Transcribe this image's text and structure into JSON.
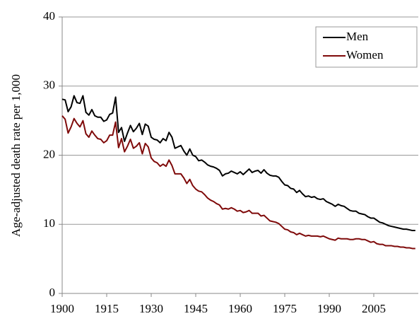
{
  "chart_data": {
    "type": "line",
    "y_label": "Age-adjusted death rate per 1,000",
    "x": [
      1900,
      1901,
      1902,
      1903,
      1904,
      1905,
      1906,
      1907,
      1908,
      1909,
      1910,
      1911,
      1912,
      1913,
      1914,
      1915,
      1916,
      1917,
      1918,
      1919,
      1920,
      1921,
      1922,
      1923,
      1924,
      1925,
      1926,
      1927,
      1928,
      1929,
      1930,
      1931,
      1932,
      1933,
      1934,
      1935,
      1936,
      1937,
      1938,
      1939,
      1940,
      1941,
      1942,
      1943,
      1944,
      1945,
      1946,
      1947,
      1948,
      1949,
      1950,
      1951,
      1952,
      1953,
      1954,
      1955,
      1956,
      1957,
      1958,
      1959,
      1960,
      1961,
      1962,
      1963,
      1964,
      1965,
      1966,
      1967,
      1968,
      1969,
      1970,
      1971,
      1972,
      1973,
      1974,
      1975,
      1976,
      1977,
      1978,
      1979,
      1980,
      1981,
      1982,
      1983,
      1984,
      1985,
      1986,
      1987,
      1988,
      1989,
      1990,
      1991,
      1992,
      1993,
      1994,
      1995,
      1996,
      1997,
      1998,
      1999,
      2000,
      2001,
      2002,
      2003,
      2004,
      2005,
      2006,
      2007,
      2008,
      2009,
      2010,
      2011,
      2012,
      2013,
      2014,
      2015,
      2016,
      2017,
      2018,
      2019
    ],
    "series": [
      {
        "name": "Men",
        "color": "#000000",
        "values": [
          28.1,
          28.0,
          26.3,
          27.0,
          28.6,
          27.6,
          27.5,
          28.6,
          26.2,
          25.8,
          26.6,
          25.7,
          25.5,
          25.5,
          24.9,
          25.1,
          25.9,
          26.1,
          28.4,
          23.3,
          24.0,
          22.0,
          23.2,
          24.3,
          23.4,
          23.9,
          24.6,
          23.0,
          24.5,
          24.2,
          22.6,
          22.3,
          22.2,
          21.8,
          22.4,
          22.1,
          23.3,
          22.6,
          21.0,
          21.2,
          21.4,
          20.6,
          20.0,
          20.9,
          20.0,
          19.8,
          19.2,
          19.3,
          19.0,
          18.6,
          18.4,
          18.3,
          18.1,
          17.8,
          17.0,
          17.3,
          17.4,
          17.7,
          17.5,
          17.3,
          17.6,
          17.2,
          17.6,
          18.0,
          17.5,
          17.7,
          17.8,
          17.4,
          17.9,
          17.4,
          17.1,
          17.0,
          17.0,
          16.8,
          16.2,
          15.7,
          15.6,
          15.2,
          15.1,
          14.6,
          14.9,
          14.4,
          14.0,
          14.1,
          13.9,
          14.0,
          13.7,
          13.6,
          13.7,
          13.3,
          13.1,
          12.9,
          12.6,
          12.9,
          12.7,
          12.6,
          12.3,
          12.0,
          11.9,
          11.9,
          11.6,
          11.5,
          11.4,
          11.1,
          10.9,
          10.9,
          10.6,
          10.3,
          10.2,
          10.0,
          9.8,
          9.7,
          9.6,
          9.5,
          9.4,
          9.3,
          9.3,
          9.2,
          9.1,
          9.1
        ]
      },
      {
        "name": "Women",
        "color": "#7f0a0a",
        "values": [
          25.7,
          25.2,
          23.2,
          24.1,
          25.3,
          24.6,
          24.1,
          25.0,
          23.1,
          22.6,
          23.5,
          22.9,
          22.4,
          22.3,
          21.8,
          22.1,
          22.9,
          22.9,
          24.8,
          21.1,
          22.4,
          20.5,
          21.3,
          22.3,
          21.0,
          21.3,
          21.8,
          20.2,
          21.7,
          21.2,
          19.6,
          19.1,
          18.9,
          18.4,
          18.7,
          18.4,
          19.3,
          18.5,
          17.3,
          17.3,
          17.3,
          16.7,
          15.9,
          16.5,
          15.6,
          15.1,
          14.8,
          14.7,
          14.3,
          13.8,
          13.5,
          13.3,
          13.0,
          12.8,
          12.2,
          12.3,
          12.2,
          12.4,
          12.2,
          11.9,
          12.0,
          11.7,
          11.8,
          12.0,
          11.6,
          11.6,
          11.6,
          11.2,
          11.3,
          10.9,
          10.5,
          10.4,
          10.3,
          10.1,
          9.7,
          9.3,
          9.2,
          8.9,
          8.8,
          8.5,
          8.7,
          8.5,
          8.3,
          8.4,
          8.3,
          8.3,
          8.3,
          8.2,
          8.3,
          8.1,
          7.9,
          7.8,
          7.7,
          8.0,
          7.9,
          7.9,
          7.9,
          7.8,
          7.8,
          7.9,
          7.9,
          7.8,
          7.8,
          7.6,
          7.4,
          7.5,
          7.2,
          7.1,
          7.1,
          6.9,
          6.9,
          6.9,
          6.8,
          6.8,
          6.7,
          6.7,
          6.6,
          6.6,
          6.5,
          6.5
        ]
      }
    ],
    "xlim": [
      1900,
      2020
    ],
    "xticks": [
      1900,
      1915,
      1930,
      1945,
      1960,
      1975,
      1990,
      2005
    ],
    "ylim": [
      0,
      40
    ],
    "yticks": [
      0,
      10,
      20,
      30,
      40
    ],
    "grid": true,
    "legend": "upper right"
  }
}
